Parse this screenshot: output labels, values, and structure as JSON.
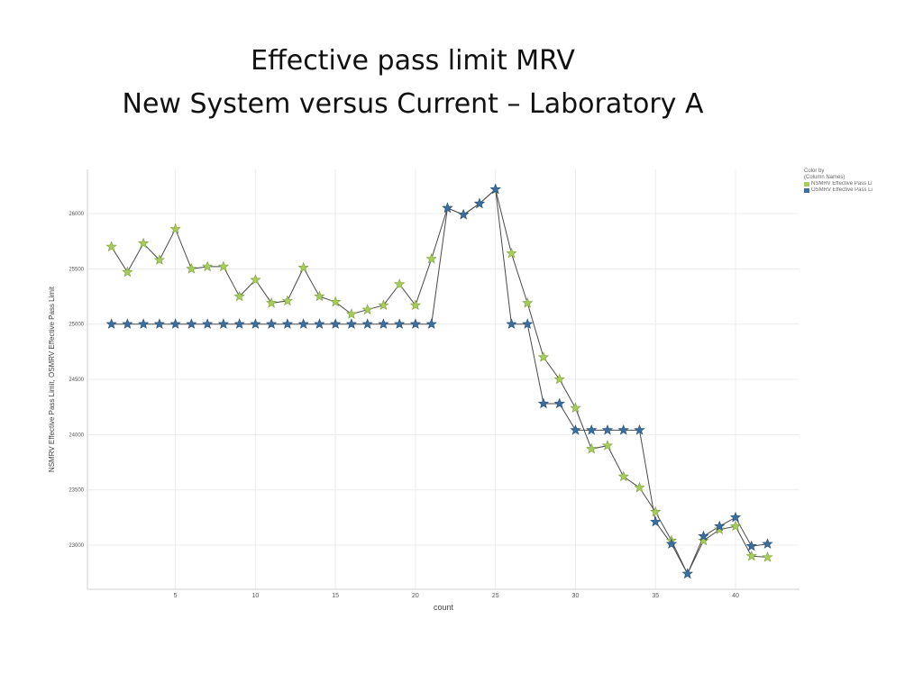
{
  "page": {
    "title_line1": "Effective pass limit MRV",
    "title_line2": "New System versus Current – Laboratory A"
  },
  "legend": {
    "title_line1": "Color by",
    "title_line2": "(Column Names)",
    "items": [
      "NSMRV Effective Pass Li",
      "OSMRV Effective Pass Li"
    ]
  },
  "chart_data": {
    "type": "line",
    "title": "Effective pass limit MRV / New System versus Current – Laboratory A",
    "xlabel": "count",
    "ylabel": "NSMRV Effective Pass Limit, OSMRV Effective Pass Limit",
    "xlim": [
      -0.5,
      44
    ],
    "ylim": [
      22600,
      26400
    ],
    "xticks": [
      5,
      10,
      15,
      20,
      25,
      30,
      35,
      40
    ],
    "yticks": [
      23000,
      23500,
      24000,
      24500,
      25000,
      25500,
      26000
    ],
    "ytick_labels": [
      "23000",
      "23500",
      "24000",
      "24500",
      "25000",
      "25500",
      "26000"
    ],
    "grid": true,
    "legend_position": "top-right",
    "marker": "star",
    "x": [
      1,
      2,
      3,
      4,
      5,
      6,
      7,
      8,
      9,
      10,
      11,
      12,
      13,
      14,
      15,
      16,
      17,
      18,
      19,
      20,
      21,
      22,
      23,
      24,
      25,
      26,
      27,
      28,
      29,
      30,
      31,
      32,
      33,
      34,
      35,
      36,
      37,
      38,
      39,
      40,
      41,
      42
    ],
    "series": [
      {
        "name": "NSMRV Effective Pass Li",
        "color": "#a8cc5c",
        "values": [
          25700,
          25470,
          25730,
          25580,
          25860,
          25500,
          25520,
          25520,
          25250,
          25400,
          25190,
          25210,
          25510,
          25250,
          25200,
          25090,
          25130,
          25170,
          25360,
          25170,
          25590,
          26050,
          25990,
          26090,
          26220,
          25640,
          25190,
          24700,
          24500,
          24240,
          23870,
          23900,
          23620,
          23520,
          23300,
          23040,
          22740,
          23040,
          23140,
          23170,
          22900,
          22890
        ]
      },
      {
        "name": "OSMRV Effective Pass Li",
        "color": "#3b6e9e",
        "values": [
          25000,
          25000,
          25000,
          25000,
          25000,
          25000,
          25000,
          25000,
          25000,
          25000,
          25000,
          25000,
          25000,
          25000,
          25000,
          25000,
          25000,
          25000,
          25000,
          25000,
          25000,
          26050,
          25990,
          26090,
          26220,
          25000,
          25000,
          24280,
          24280,
          24040,
          24040,
          24040,
          24040,
          24040,
          23210,
          23010,
          22740,
          23080,
          23170,
          23250,
          22990,
          23010
        ]
      }
    ]
  }
}
